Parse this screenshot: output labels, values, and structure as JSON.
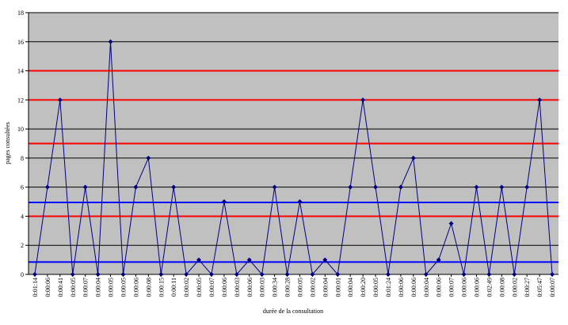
{
  "chart_data": {
    "type": "line",
    "x_label": "durée de la consultation",
    "y_label": "pages consultées",
    "categories": [
      "0:01:14",
      "0:00:06",
      "0:00:41",
      "0:00:05",
      "0:00:07",
      "0:00:04",
      "0:00:05",
      "0:00:05",
      "0:00:06",
      "0:00:08",
      "0:00:15",
      "0:00:11",
      "0:00:02",
      "0:00:05",
      "0:00:07",
      "0:00:06",
      "0:00:03",
      "0:00:06",
      "0:00:03",
      "0:00:34",
      "0:00:28",
      "0:00:05",
      "0:00:02",
      "0:00:04",
      "0:00:01",
      "0:00:04",
      "0:00:20",
      "0:00:05",
      "0:01:24",
      "0:00:06",
      "0:00:06",
      "0:00:04",
      "0:00:06",
      "0:00:07",
      "0:00:06",
      "0:00:06",
      "0:02:49",
      "0:00:08",
      "0:00:02",
      "0:00:27",
      "0:05:47",
      "0:00:07"
    ],
    "series": [
      {
        "color": "#000080",
        "values": [
          0,
          6,
          12,
          0,
          6,
          0,
          16,
          0,
          6,
          8,
          0,
          6,
          0,
          1,
          0,
          5,
          0,
          1,
          0,
          6,
          0,
          5,
          0,
          1,
          0,
          6,
          12,
          6,
          0,
          6,
          8,
          0,
          1,
          3.5,
          0,
          6,
          0,
          6,
          0,
          6,
          12,
          0
        ]
      }
    ],
    "reference_lines": [
      {
        "value": 14,
        "color": "#ff0000"
      },
      {
        "value": 12,
        "color": "#ff0000"
      },
      {
        "value": 9,
        "color": "#ff0000"
      },
      {
        "value": 4,
        "color": "#ff0000"
      },
      {
        "value": 4.95,
        "color": "#0000ff"
      },
      {
        "value": 0.85,
        "color": "#0000ff"
      }
    ],
    "ylim": [
      0,
      18
    ],
    "yticks": [
      0,
      2,
      4,
      6,
      8,
      10,
      12,
      14,
      16,
      18
    ],
    "grid": true,
    "background": "#c0c0c0"
  }
}
